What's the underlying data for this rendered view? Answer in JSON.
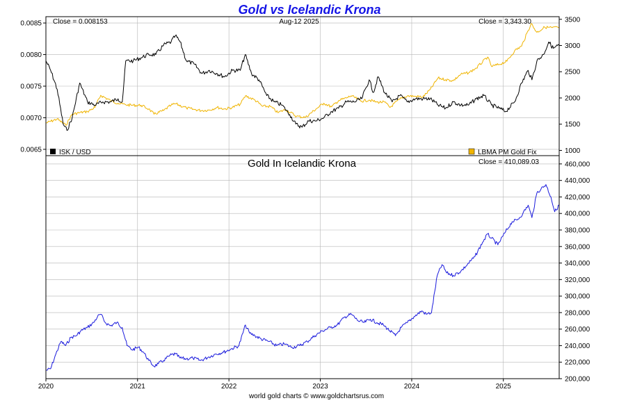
{
  "title": "Gold vs Icelandic Krona",
  "footer": "world gold charts © www.goldchartsrus.com",
  "colors": {
    "title": "#1414e6",
    "isk_line": "#000000",
    "gold_fix_line": "#f0b400",
    "gold_isk_line": "#1a1adc",
    "grid": "#b4b4b4",
    "axis": "#000000"
  },
  "chart_data": [
    {
      "type": "line",
      "name": "top-panel",
      "date_label": "Aug-12  2025",
      "close_left": "Close = 0.008153",
      "close_right": "Close = 3,343.30",
      "x_range": [
        "2020-01-01",
        "2025-08-12"
      ],
      "grid": true,
      "legend_placement": "bottom",
      "left_axis": {
        "ylim": [
          0.0064,
          0.0086
        ],
        "ticks": [
          0.0065,
          0.007,
          0.0075,
          0.008,
          0.0085
        ],
        "tick_labels": [
          "0.0065",
          "0.0070",
          "0.0075",
          "0.0080",
          "0.0085"
        ]
      },
      "right_axis": {
        "ylim": [
          900,
          3550
        ],
        "ticks": [
          1000,
          1500,
          2000,
          2500,
          3000,
          3500
        ],
        "tick_labels": [
          "1000",
          "1500",
          "2000",
          "2500",
          "3000",
          "3500"
        ]
      },
      "series": [
        {
          "name": "ISK / USD",
          "axis": "left",
          "color": "#000000",
          "x": [
            "2020-01-01",
            "2020-01-20",
            "2020-02-15",
            "2020-03-10",
            "2020-03-25",
            "2020-04-15",
            "2020-05-15",
            "2020-06-15",
            "2020-07-15",
            "2020-08-15",
            "2020-09-15",
            "2020-10-15",
            "2020-11-01",
            "2020-11-15",
            "2020-12-15",
            "2021-01-15",
            "2021-02-15",
            "2021-03-15",
            "2021-04-15",
            "2021-05-15",
            "2021-06-01",
            "2021-06-20",
            "2021-07-15",
            "2021-08-15",
            "2021-09-15",
            "2021-10-15",
            "2021-11-15",
            "2021-12-15",
            "2022-01-15",
            "2022-02-15",
            "2022-03-07",
            "2022-04-01",
            "2022-05-01",
            "2022-06-01",
            "2022-07-01",
            "2022-08-01",
            "2022-09-01",
            "2022-09-25",
            "2022-10-20",
            "2022-11-15",
            "2022-12-15",
            "2023-01-15",
            "2023-02-15",
            "2023-03-15",
            "2023-04-15",
            "2023-05-15",
            "2023-06-15",
            "2023-07-15",
            "2023-08-01",
            "2023-08-20",
            "2023-09-15",
            "2023-10-15",
            "2023-11-15",
            "2023-12-15",
            "2024-01-15",
            "2024-02-15",
            "2024-03-15",
            "2024-04-15",
            "2024-05-15",
            "2024-06-15",
            "2024-07-15",
            "2024-08-15",
            "2024-09-15",
            "2024-10-15",
            "2024-11-15",
            "2024-12-15",
            "2025-01-10",
            "2025-02-15",
            "2025-03-15",
            "2025-04-10",
            "2025-04-25",
            "2025-05-15",
            "2025-06-10",
            "2025-07-01",
            "2025-07-20",
            "2025-08-12"
          ],
          "values": [
            0.0079,
            0.00775,
            0.00745,
            0.0069,
            0.0068,
            0.007,
            0.00755,
            0.00725,
            0.0072,
            0.00725,
            0.00725,
            0.0073,
            0.00725,
            0.0079,
            0.0079,
            0.00795,
            0.008,
            0.008,
            0.00815,
            0.0082,
            0.0083,
            0.0082,
            0.0079,
            0.00785,
            0.0077,
            0.00775,
            0.0077,
            0.00765,
            0.00775,
            0.00775,
            0.008,
            0.0077,
            0.0076,
            0.00735,
            0.00725,
            0.0072,
            0.00705,
            0.0069,
            0.00685,
            0.00695,
            0.00695,
            0.007,
            0.0071,
            0.00715,
            0.00725,
            0.00725,
            0.0073,
            0.0076,
            0.0074,
            0.00765,
            0.0074,
            0.00725,
            0.00735,
            0.00725,
            0.0073,
            0.0073,
            0.0073,
            0.0072,
            0.00715,
            0.00725,
            0.0072,
            0.0072,
            0.0073,
            0.00735,
            0.0072,
            0.00715,
            0.0071,
            0.00725,
            0.00755,
            0.00775,
            0.0076,
            0.0079,
            0.008,
            0.0082,
            0.0081,
            0.00815
          ]
        },
        {
          "name": "LBMA PM Gold Fix",
          "axis": "right",
          "color": "#f0b400",
          "x": [
            "2020-01-01",
            "2020-02-15",
            "2020-03-20",
            "2020-04-15",
            "2020-05-15",
            "2020-06-15",
            "2020-07-15",
            "2020-08-07",
            "2020-09-15",
            "2020-10-15",
            "2020-11-15",
            "2020-12-15",
            "2021-01-15",
            "2021-02-15",
            "2021-03-08",
            "2021-04-15",
            "2021-05-15",
            "2021-06-01",
            "2021-07-15",
            "2021-08-15",
            "2021-09-15",
            "2021-10-15",
            "2021-11-15",
            "2021-12-15",
            "2022-01-15",
            "2022-02-15",
            "2022-03-08",
            "2022-04-15",
            "2022-05-15",
            "2022-06-15",
            "2022-07-15",
            "2022-08-15",
            "2022-09-28",
            "2022-11-03",
            "2022-12-15",
            "2023-01-15",
            "2023-02-15",
            "2023-03-15",
            "2023-04-15",
            "2023-05-04",
            "2023-06-15",
            "2023-07-15",
            "2023-08-15",
            "2023-09-15",
            "2023-10-06",
            "2023-11-15",
            "2023-12-15",
            "2024-01-15",
            "2024-02-15",
            "2024-03-15",
            "2024-04-15",
            "2024-05-15",
            "2024-06-15",
            "2024-07-15",
            "2024-08-15",
            "2024-09-15",
            "2024-10-30",
            "2024-11-15",
            "2024-12-15",
            "2025-01-15",
            "2025-02-15",
            "2025-03-15",
            "2025-04-22",
            "2025-05-15",
            "2025-06-15",
            "2025-07-15",
            "2025-08-12"
          ],
          "values": [
            1520,
            1600,
            1480,
            1690,
            1720,
            1740,
            1820,
            2050,
            1950,
            1900,
            1870,
            1860,
            1860,
            1790,
            1690,
            1760,
            1860,
            1890,
            1810,
            1780,
            1760,
            1770,
            1820,
            1790,
            1820,
            1880,
            2040,
            1960,
            1840,
            1840,
            1720,
            1780,
            1650,
            1630,
            1790,
            1900,
            1830,
            1950,
            2000,
            2040,
            1940,
            1960,
            1920,
            1920,
            1820,
            1980,
            2040,
            2030,
            2020,
            2160,
            2380,
            2350,
            2330,
            2450,
            2480,
            2570,
            2780,
            2600,
            2640,
            2700,
            2900,
            2990,
            3420,
            3250,
            3350,
            3340,
            3343.3
          ]
        }
      ],
      "legend": [
        "ISK / USD",
        "LBMA PM Gold Fix"
      ]
    },
    {
      "type": "line",
      "name": "bottom-panel",
      "title": "Gold In Icelandic Krona",
      "close_right": "Close = 410,089.03",
      "x_range": [
        "2020-01-01",
        "2025-08-12"
      ],
      "grid": true,
      "ylim": [
        200000,
        470000
      ],
      "ticks": [
        200000,
        220000,
        240000,
        260000,
        280000,
        300000,
        320000,
        340000,
        360000,
        380000,
        400000,
        420000,
        440000,
        460000
      ],
      "tick_labels": [
        "200,000",
        "220,000",
        "240,000",
        "260,000",
        "280,000",
        "300,000",
        "320,000",
        "340,000",
        "360,000",
        "380,000",
        "400,000",
        "420,000",
        "440,000",
        "460,000"
      ],
      "x_tick_labels": [
        "2020",
        "2021",
        "2022",
        "2023",
        "2024",
        "2025"
      ],
      "x_ticks": [
        "2020-01-01",
        "2021-01-01",
        "2022-01-01",
        "2023-01-01",
        "2024-01-01",
        "2025-01-01"
      ],
      "series": [
        {
          "name": "",
          "color": "#1a1adc",
          "x": [
            "2020-01-01",
            "2020-01-20",
            "2020-02-10",
            "2020-03-01",
            "2020-03-20",
            "2020-04-10",
            "2020-05-01",
            "2020-05-20",
            "2020-06-15",
            "2020-07-10",
            "2020-07-25",
            "2020-08-07",
            "2020-08-25",
            "2020-09-15",
            "2020-10-10",
            "2020-11-01",
            "2020-11-20",
            "2020-12-10",
            "2021-01-05",
            "2021-01-25",
            "2021-02-15",
            "2021-03-08",
            "2021-03-25",
            "2021-04-15",
            "2021-05-10",
            "2021-06-01",
            "2021-06-20",
            "2021-07-15",
            "2021-08-10",
            "2021-09-10",
            "2021-10-10",
            "2021-11-10",
            "2021-12-10",
            "2022-01-10",
            "2022-02-10",
            "2022-03-08",
            "2022-03-25",
            "2022-04-15",
            "2022-05-10",
            "2022-06-10",
            "2022-07-10",
            "2022-08-10",
            "2022-09-10",
            "2022-10-10",
            "2022-11-10",
            "2022-12-10",
            "2023-01-10",
            "2023-02-10",
            "2023-03-10",
            "2023-04-10",
            "2023-05-05",
            "2023-06-01",
            "2023-06-25",
            "2023-07-20",
            "2023-08-15",
            "2023-09-10",
            "2023-10-05",
            "2023-10-28",
            "2023-11-20",
            "2023-12-15",
            "2024-01-10",
            "2024-02-10",
            "2024-02-28",
            "2024-03-20",
            "2024-04-12",
            "2024-05-01",
            "2024-05-20",
            "2024-06-15",
            "2024-07-15",
            "2024-08-10",
            "2024-09-10",
            "2024-10-10",
            "2024-10-30",
            "2024-11-15",
            "2024-12-10",
            "2025-01-10",
            "2025-02-05",
            "2025-02-25",
            "2025-03-20",
            "2025-04-10",
            "2025-04-25",
            "2025-05-15",
            "2025-06-01",
            "2025-06-20",
            "2025-07-10",
            "2025-07-25",
            "2025-08-12"
          ],
          "values": [
            210000,
            212000,
            230000,
            245000,
            240000,
            250000,
            252000,
            258000,
            262000,
            268000,
            275000,
            278000,
            268000,
            264000,
            268000,
            262000,
            240000,
            235000,
            238000,
            232000,
            222000,
            215000,
            218000,
            222000,
            228000,
            230000,
            225000,
            224000,
            225000,
            222000,
            226000,
            230000,
            232000,
            236000,
            240000,
            265000,
            255000,
            252000,
            248000,
            245000,
            240000,
            242000,
            238000,
            240000,
            245000,
            252000,
            258000,
            262000,
            265000,
            275000,
            278000,
            270000,
            268000,
            272000,
            268000,
            265000,
            258000,
            252000,
            262000,
            268000,
            275000,
            282000,
            278000,
            280000,
            325000,
            338000,
            328000,
            325000,
            330000,
            338000,
            348000,
            365000,
            375000,
            370000,
            362000,
            378000,
            390000,
            392000,
            400000,
            410000,
            395000,
            425000,
            430000,
            435000,
            420000,
            402000,
            410089
          ]
        }
      ]
    }
  ]
}
